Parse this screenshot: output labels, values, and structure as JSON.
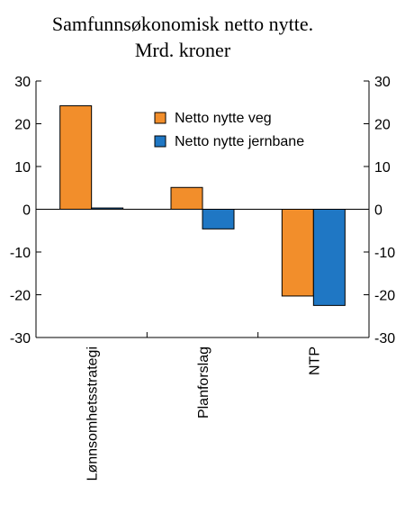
{
  "chart_data": {
    "type": "bar",
    "title": "Samfunnsøkonomisk netto nytte.",
    "subtitle": "Mrd. kroner",
    "categories": [
      "Lønnsomhetsstrategi",
      "Planforslag",
      "NTP"
    ],
    "series": [
      {
        "name": "Netto nytte veg",
        "values": [
          24.2,
          5.1,
          -20.3
        ],
        "color": "#f28e2b"
      },
      {
        "name": "Netto nytte jernbane",
        "values": [
          0.3,
          -4.6,
          -22.5
        ],
        "color": "#1f77c4"
      }
    ],
    "ylim": [
      -30,
      30
    ],
    "yticks": [
      30,
      20,
      10,
      0,
      -10,
      -20,
      -30
    ],
    "secondary_axis": true,
    "grid": false,
    "legend_position": "top-right"
  }
}
